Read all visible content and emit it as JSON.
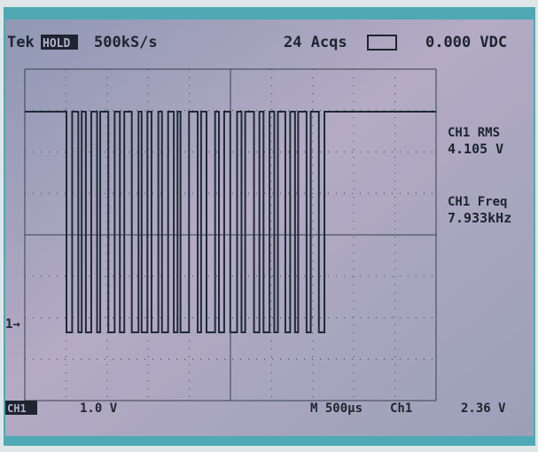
{
  "header": {
    "brand": "Tek",
    "mode": "HOLD",
    "sample_rate": "500kS/s",
    "acquisitions": "24 Acqs",
    "readout": "0.000 VDC"
  },
  "measurements": [
    {
      "label": "CH1 RMS",
      "value": "4.105 V"
    },
    {
      "label": "CH1 Freq",
      "value": "7.933kHz"
    }
  ],
  "channel_marker": "1→",
  "footer": {
    "channel": "CH1",
    "volts_div": "1.0 V",
    "timebase": "M 500μs",
    "trigger_source": "Ch1",
    "trigger_level": "2.36 V"
  }
}
